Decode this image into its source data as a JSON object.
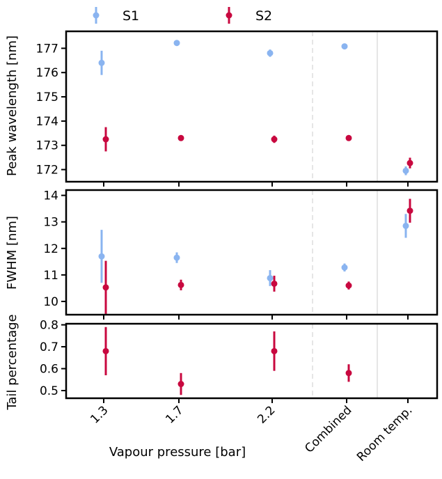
{
  "chart_data": {
    "type": "scatter",
    "categories": [
      "1.3",
      "1.7",
      "2.2",
      "Combined",
      "Room temp."
    ],
    "xlabel": "Vapour pressure [bar]",
    "legend": {
      "placement": "top",
      "entries": [
        "S1",
        "S2"
      ]
    },
    "colors": {
      "S1": "#8ab4f0",
      "S2": "#c8083f",
      "separator_dashed": "#e6e6e6",
      "separator_solid": "#e6e6e6"
    },
    "panels": [
      {
        "ylabel": "Peak wavelength [nm]",
        "ylim": [
          171.5,
          177.7
        ],
        "yticks": [
          "172",
          "173",
          "174",
          "175",
          "176",
          "177"
        ],
        "series": [
          {
            "name": "S1",
            "values": [
              176.4,
              177.22,
              176.8,
              177.08,
              171.95
            ],
            "errors": [
              0.5,
              0.08,
              0.15,
              0.05,
              0.18
            ]
          },
          {
            "name": "S2",
            "values": [
              173.25,
              173.3,
              173.25,
              173.3,
              172.27
            ],
            "errors": [
              0.5,
              0.1,
              0.15,
              0.05,
              0.22
            ]
          }
        ]
      },
      {
        "ylabel": "FWHM [nm]",
        "ylim": [
          9.5,
          14.2
        ],
        "yticks": [
          "10",
          "11",
          "12",
          "13",
          "14"
        ],
        "series": [
          {
            "name": "S1",
            "values": [
              11.7,
              11.65,
              10.88,
              11.28,
              12.85
            ],
            "errors": [
              1.0,
              0.2,
              0.3,
              0.15,
              0.45
            ]
          },
          {
            "name": "S2",
            "values": [
              10.53,
              10.62,
              10.67,
              10.6,
              13.42
            ],
            "errors": [
              1.0,
              0.2,
              0.3,
              0.15,
              0.45
            ]
          }
        ]
      },
      {
        "ylabel": "Tail percentage",
        "ylim": [
          0.465,
          0.805
        ],
        "yticks": [
          "0.5",
          "0.6",
          "0.7",
          "0.8"
        ],
        "series": [
          {
            "name": "S2",
            "values": [
              0.68,
              0.53,
              0.68,
              0.58,
              null
            ],
            "errors": [
              0.11,
              0.05,
              0.09,
              0.04,
              null
            ]
          }
        ]
      }
    ]
  }
}
